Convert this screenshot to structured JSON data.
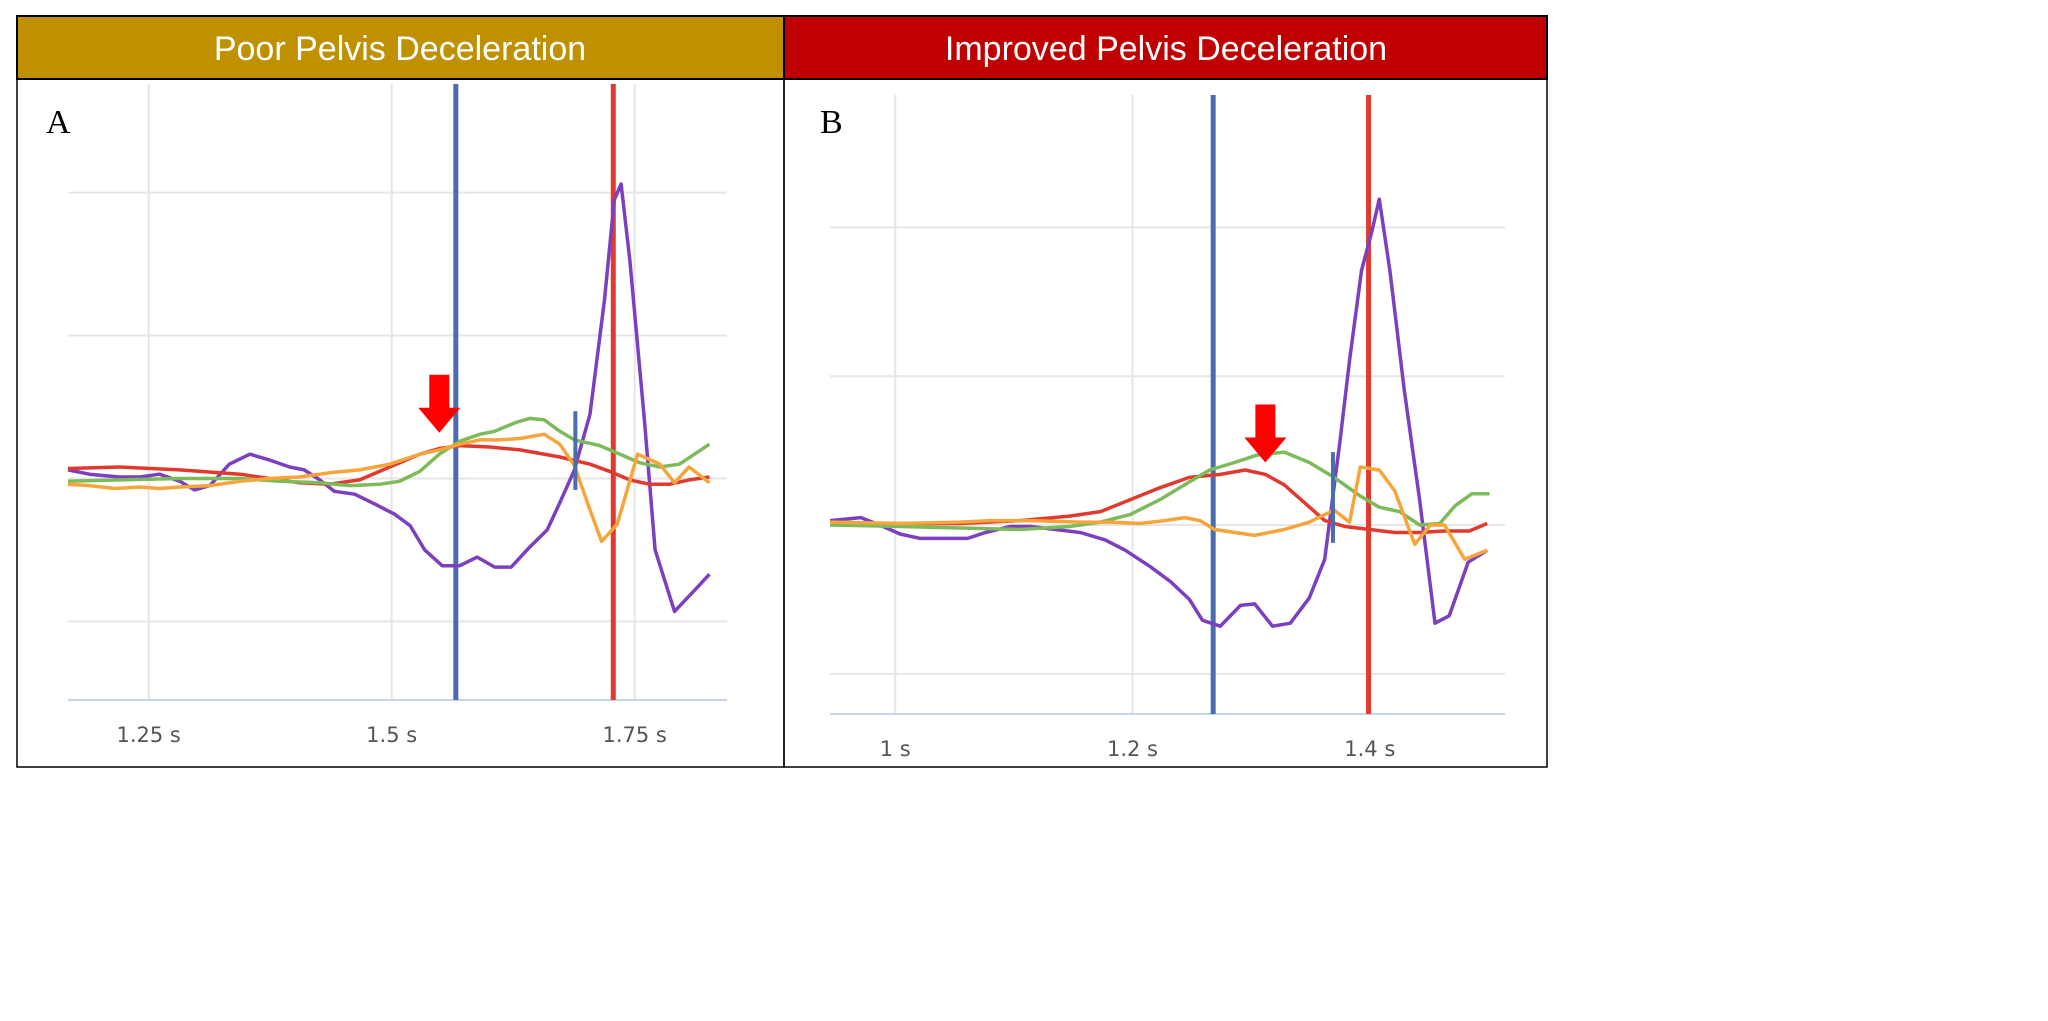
{
  "colors": {
    "panel_a_header": "#BF9000",
    "panel_b_header": "#C00000",
    "purple": "#7B3FBF",
    "red": "#E03A2F",
    "green": "#7DBB5A",
    "orange": "#F5A53A",
    "blue_marker": "#4A6DB0",
    "red_marker": "#E03A2F",
    "arrow": "#FF0000",
    "grid": "#E6E6E6",
    "axis": "#C8D3EC"
  },
  "chart_data": [
    {
      "type": "line",
      "header": "Poor Pelvis Deceleration",
      "panel_label": "A",
      "xlim": [
        1.167,
        1.845
      ],
      "ylim": [
        -1.55,
        2.76
      ],
      "grid": true,
      "x_ticks": [
        {
          "value": 1.25,
          "label": "1.25 s"
        },
        {
          "value": 1.5,
          "label": "1.5 s"
        },
        {
          "value": 1.75,
          "label": "1.75 s"
        }
      ],
      "y_gridlines": [
        2,
        1,
        0,
        -1
      ],
      "vertical_markers": [
        {
          "x": 1.566,
          "color": "blue",
          "full": true
        },
        {
          "x": 1.728,
          "color": "red",
          "full": true
        },
        {
          "x": 1.689,
          "color": "blue",
          "full": false,
          "y_range": [
            -0.08,
            0.47
          ]
        }
      ],
      "arrow": {
        "x": 1.549,
        "y": 0.32
      },
      "series": [
        {
          "color": "purple",
          "x": [
            1.167,
            1.189,
            1.22,
            1.241,
            1.261,
            1.282,
            1.297,
            1.313,
            1.333,
            1.354,
            1.374,
            1.395,
            1.41,
            1.426,
            1.441,
            1.462,
            1.483,
            1.503,
            1.519,
            1.534,
            1.552,
            1.57,
            1.588,
            1.606,
            1.623,
            1.642,
            1.66,
            1.673,
            1.688,
            1.704,
            1.719,
            1.729,
            1.736,
            1.745,
            1.76,
            1.771,
            1.791,
            1.812,
            1.827
          ],
          "y": [
            0.06,
            0.03,
            0.01,
            0.01,
            0.03,
            -0.02,
            -0.08,
            -0.05,
            0.1,
            0.17,
            0.13,
            0.08,
            0.06,
            -0.01,
            -0.09,
            -0.11,
            -0.18,
            -0.25,
            -0.33,
            -0.5,
            -0.61,
            -0.61,
            -0.55,
            -0.62,
            -0.62,
            -0.48,
            -0.36,
            -0.17,
            0.06,
            0.45,
            1.25,
            1.95,
            2.06,
            1.53,
            0.41,
            -0.5,
            -0.93,
            -0.78,
            -0.67
          ]
        },
        {
          "color": "red",
          "x": [
            1.167,
            1.22,
            1.282,
            1.344,
            1.405,
            1.436,
            1.467,
            1.498,
            1.529,
            1.549,
            1.57,
            1.601,
            1.632,
            1.673,
            1.704,
            1.724,
            1.745,
            1.765,
            1.786,
            1.806,
            1.827
          ],
          "y": [
            0.07,
            0.08,
            0.06,
            0.03,
            -0.03,
            -0.04,
            -0.01,
            0.08,
            0.17,
            0.21,
            0.23,
            0.22,
            0.2,
            0.15,
            0.1,
            0.05,
            -0.01,
            -0.04,
            -0.04,
            -0.01,
            0.01
          ]
        },
        {
          "color": "green",
          "x": [
            1.167,
            1.22,
            1.282,
            1.344,
            1.385,
            1.426,
            1.457,
            1.488,
            1.508,
            1.529,
            1.549,
            1.57,
            1.591,
            1.606,
            1.627,
            1.642,
            1.657,
            1.673,
            1.688,
            1.714,
            1.735,
            1.755,
            1.776,
            1.796,
            1.827
          ],
          "y": [
            -0.02,
            -0.01,
            0.0,
            0.0,
            -0.02,
            -0.03,
            -0.05,
            -0.04,
            -0.02,
            0.05,
            0.17,
            0.26,
            0.31,
            0.33,
            0.39,
            0.42,
            0.41,
            0.33,
            0.27,
            0.23,
            0.17,
            0.11,
            0.08,
            0.1,
            0.24
          ]
        },
        {
          "color": "orange",
          "x": [
            1.167,
            1.189,
            1.215,
            1.241,
            1.261,
            1.282,
            1.313,
            1.344,
            1.374,
            1.405,
            1.436,
            1.467,
            1.498,
            1.529,
            1.549,
            1.57,
            1.591,
            1.611,
            1.632,
            1.657,
            1.673,
            1.688,
            1.704,
            1.716,
            1.732,
            1.753,
            1.776,
            1.791,
            1.806,
            1.827
          ],
          "y": [
            -0.04,
            -0.05,
            -0.07,
            -0.06,
            -0.07,
            -0.06,
            -0.05,
            -0.02,
            0.0,
            0.01,
            0.04,
            0.06,
            0.1,
            0.17,
            0.2,
            0.24,
            0.27,
            0.27,
            0.28,
            0.31,
            0.24,
            0.09,
            -0.22,
            -0.44,
            -0.32,
            0.17,
            0.1,
            -0.03,
            0.08,
            -0.03
          ]
        }
      ]
    },
    {
      "type": "line",
      "header": "Improved Pelvis Deceleration",
      "panel_label": "B",
      "xlim": [
        0.945,
        1.514
      ],
      "ylim": [
        -1.27,
        2.89
      ],
      "grid": true,
      "x_ticks": [
        {
          "value": 1.0,
          "label": "1 s"
        },
        {
          "value": 1.2,
          "label": "1.2 s"
        },
        {
          "value": 1.4,
          "label": "1.4 s"
        }
      ],
      "y_gridlines": [
        2,
        1,
        0,
        -1
      ],
      "vertical_markers": [
        {
          "x": 1.268,
          "color": "blue",
          "full": true
        },
        {
          "x": 1.399,
          "color": "red",
          "full": true
        },
        {
          "x": 1.369,
          "color": "blue",
          "full": false,
          "y_range": [
            -0.12,
            0.49
          ]
        }
      ],
      "arrow": {
        "x": 1.312,
        "y": 0.42
      },
      "series": [
        {
          "color": "purple",
          "x": [
            0.945,
            0.971,
            0.987,
            1.004,
            1.021,
            1.042,
            1.061,
            1.076,
            1.097,
            1.114,
            1.135,
            1.156,
            1.177,
            1.194,
            1.215,
            1.232,
            1.248,
            1.259,
            1.274,
            1.291,
            1.303,
            1.318,
            1.333,
            1.349,
            1.362,
            1.375,
            1.383,
            1.393,
            1.402,
            1.408,
            1.417,
            1.429,
            1.442,
            1.455,
            1.467,
            1.483,
            1.499
          ],
          "y": [
            0.03,
            0.05,
            0.0,
            -0.06,
            -0.09,
            -0.09,
            -0.09,
            -0.05,
            -0.01,
            -0.01,
            -0.03,
            -0.05,
            -0.1,
            -0.17,
            -0.28,
            -0.38,
            -0.5,
            -0.64,
            -0.68,
            -0.54,
            -0.53,
            -0.68,
            -0.66,
            -0.49,
            -0.23,
            0.57,
            1.11,
            1.71,
            1.98,
            2.19,
            1.71,
            0.91,
            0.17,
            -0.66,
            -0.61,
            -0.25,
            -0.17
          ]
        },
        {
          "color": "red",
          "x": [
            0.945,
            1.004,
            1.055,
            1.105,
            1.147,
            1.173,
            1.198,
            1.223,
            1.248,
            1.274,
            1.295,
            1.312,
            1.328,
            1.345,
            1.362,
            1.379,
            1.4,
            1.421,
            1.442,
            1.463,
            1.484,
            1.499
          ],
          "y": [
            0.01,
            0.01,
            0.01,
            0.03,
            0.06,
            0.09,
            0.17,
            0.25,
            0.32,
            0.34,
            0.37,
            0.34,
            0.27,
            0.15,
            0.03,
            -0.01,
            -0.03,
            -0.05,
            -0.05,
            -0.04,
            -0.04,
            0.01
          ]
        },
        {
          "color": "green",
          "x": [
            0.945,
            1.004,
            1.055,
            1.105,
            1.147,
            1.173,
            1.198,
            1.223,
            1.248,
            1.265,
            1.286,
            1.305,
            1.328,
            1.349,
            1.37,
            1.391,
            1.408,
            1.425,
            1.442,
            1.459,
            1.472,
            1.486,
            1.501
          ],
          "y": [
            0.0,
            -0.01,
            -0.02,
            -0.03,
            -0.01,
            0.02,
            0.07,
            0.17,
            0.29,
            0.37,
            0.42,
            0.47,
            0.49,
            0.42,
            0.32,
            0.2,
            0.12,
            0.09,
            0.0,
            0.01,
            0.13,
            0.21,
            0.21
          ]
        },
        {
          "color": "orange",
          "x": [
            0.945,
            1.004,
            1.055,
            1.08,
            1.114,
            1.156,
            1.181,
            1.206,
            1.227,
            1.244,
            1.257,
            1.269,
            1.303,
            1.328,
            1.349,
            1.37,
            1.383,
            1.392,
            1.408,
            1.421,
            1.438,
            1.451,
            1.463,
            1.48,
            1.499
          ],
          "y": [
            0.02,
            0.01,
            0.02,
            0.03,
            0.03,
            0.02,
            0.02,
            0.01,
            0.03,
            0.05,
            0.03,
            -0.03,
            -0.07,
            -0.03,
            0.02,
            0.1,
            0.02,
            0.39,
            0.37,
            0.23,
            -0.13,
            0.0,
            0.0,
            -0.23,
            -0.17
          ]
        }
      ]
    }
  ]
}
